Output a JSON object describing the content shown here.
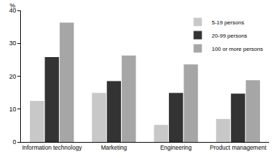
{
  "chart_data": {
    "type": "bar",
    "ylabel": "%",
    "categories": [
      "Information technology",
      "Marketing",
      "Engineering",
      "Product management"
    ],
    "series": [
      {
        "name": "5-19 persons",
        "color": "#c8c8c8",
        "values": [
          12.5,
          14.9,
          5.2,
          7.0
        ]
      },
      {
        "name": "20-99 persons",
        "color": "#333333",
        "values": [
          25.8,
          18.5,
          14.9,
          14.7
        ]
      },
      {
        "name": "100 or more persons",
        "color": "#a6a6a6",
        "values": [
          36.3,
          26.3,
          23.6,
          18.8
        ]
      }
    ],
    "ylim": [
      0,
      40
    ],
    "yticks": [
      0,
      10,
      20,
      30,
      40
    ],
    "grid": false,
    "legend": "top right"
  }
}
